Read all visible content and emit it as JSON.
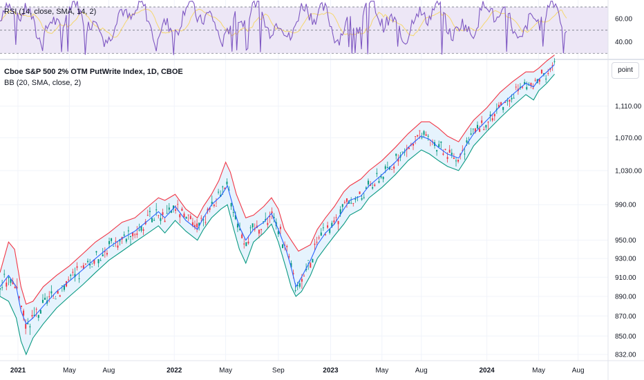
{
  "chart_data": [
    {
      "type": "line",
      "panel": "rsi",
      "legend": "RSI (14, close, SMA, 14, 2)",
      "y_ticks": [
        "60.00",
        "40.00"
      ],
      "y_tick_values": [
        60,
        40
      ],
      "levels": [
        70,
        50,
        30
      ],
      "ylim": [
        26,
        76
      ],
      "colors": {
        "rsi": "#7e57c2",
        "rsi_ma": "#f5d76e",
        "band": "#ede7f6",
        "level": "#787b86"
      }
    },
    {
      "type": "line",
      "panel": "price",
      "title": "Cboe S&P 500 2% OTM PutWrite Index, 1D, CBOE",
      "indicator": "BB (20, SMA, close, 2)",
      "scale_label": "point",
      "x_ticks": [
        "2021",
        "May",
        "Aug",
        "2022",
        "May",
        "Sep",
        "2023",
        "May",
        "Aug",
        "2024",
        "May",
        "Aug"
      ],
      "x_ticks_bold": [
        "2021",
        "2022",
        "2023",
        "2024"
      ],
      "y_ticks": [
        "1,110.00",
        "1,070.00",
        "1,030.00",
        "990.00",
        "950.00",
        "930.00",
        "910.00",
        "890.00",
        "870.00",
        "850.00",
        "832.00"
      ],
      "y_tick_values": [
        1110,
        1070,
        1030,
        990,
        950,
        930,
        910,
        890,
        870,
        850,
        832
      ],
      "series": [
        {
          "x": [
            "2020-11-20",
            "2020-12-10",
            "2020-12-28",
            "2021-01-08",
            "2021-01-20",
            "2021-02-05",
            "2021-03-01",
            "2021-04-01",
            "2021-05-01",
            "2021-06-01",
            "2021-07-01",
            "2021-08-01",
            "2021-09-01",
            "2021-10-01",
            "2021-11-01",
            "2021-11-25",
            "2021-12-10",
            "2022-01-03",
            "2022-01-28",
            "2022-02-24",
            "2022-03-10",
            "2022-03-29",
            "2022-04-20",
            "2022-05-05",
            "2022-05-20",
            "2022-06-02",
            "2022-06-17",
            "2022-07-05",
            "2022-07-29",
            "2022-08-16",
            "2022-09-01",
            "2022-09-20",
            "2022-09-30",
            "2022-10-12",
            "2022-10-25",
            "2022-11-15",
            "2022-12-01",
            "2022-12-20",
            "2023-01-10",
            "2023-02-01",
            "2023-02-15",
            "2023-03-13",
            "2023-04-01",
            "2023-05-01",
            "2023-06-01",
            "2023-07-01",
            "2023-07-31",
            "2023-08-20",
            "2023-09-10",
            "2023-10-01",
            "2023-10-27",
            "2023-11-15",
            "2023-12-01",
            "2024-01-01",
            "2024-02-01",
            "2024-03-01",
            "2024-04-01",
            "2024-04-19",
            "2024-05-01",
            "2024-05-20",
            "2024-06-07"
          ],
          "values": [
            900,
            912,
            900,
            875,
            862,
            868,
            880,
            895,
            906,
            918,
            930,
            942,
            952,
            960,
            972,
            982,
            975,
            988,
            972,
            962,
            975,
            990,
            1000,
            1012,
            985,
            965,
            950,
            962,
            970,
            980,
            962,
            938,
            922,
            900,
            910,
            928,
            945,
            958,
            968,
            985,
            995,
            1000,
            1012,
            1025,
            1040,
            1058,
            1072,
            1068,
            1058,
            1050,
            1045,
            1062,
            1075,
            1092,
            1110,
            1125,
            1140,
            1135,
            1145,
            1155,
            1165
          ],
          "color": "#2962ff"
        },
        {
          "x": [
            "2020-11-20",
            "2020-12-10",
            "2020-12-24",
            "2021-01-08",
            "2021-01-20",
            "2021-02-05",
            "2021-03-01",
            "2021-04-01",
            "2021-05-01",
            "2021-06-01",
            "2021-07-01",
            "2021-08-01",
            "2021-09-01",
            "2021-10-01",
            "2021-11-01",
            "2021-11-25",
            "2021-12-10",
            "2022-01-03",
            "2022-01-28",
            "2022-02-24",
            "2022-03-10",
            "2022-03-29",
            "2022-04-15",
            "2022-05-01",
            "2022-05-12",
            "2022-05-26",
            "2022-06-17",
            "2022-07-05",
            "2022-07-29",
            "2022-08-16",
            "2022-09-01",
            "2022-09-15",
            "2022-10-01",
            "2022-10-18",
            "2022-11-15",
            "2022-12-01",
            "2022-12-20",
            "2023-01-10",
            "2023-02-01",
            "2023-02-15",
            "2023-03-13",
            "2023-04-01",
            "2023-05-01",
            "2023-06-01",
            "2023-07-01",
            "2023-08-01",
            "2023-08-20",
            "2023-09-10",
            "2023-10-01",
            "2023-10-27",
            "2023-11-15",
            "2023-12-01",
            "2024-01-01",
            "2024-02-01",
            "2024-03-01",
            "2024-04-01",
            "2024-04-19",
            "2024-05-01",
            "2024-05-20",
            "2024-06-07"
          ],
          "values": [
            915,
            948,
            940,
            900,
            882,
            885,
            900,
            912,
            922,
            935,
            948,
            958,
            970,
            975,
            988,
            998,
            995,
            1002,
            985,
            975,
            988,
            1002,
            1018,
            1040,
            1028,
            1002,
            975,
            978,
            988,
            998,
            985,
            962,
            950,
            938,
            945,
            962,
            975,
            988,
            1005,
            1012,
            1020,
            1030,
            1042,
            1058,
            1075,
            1090,
            1090,
            1082,
            1072,
            1065,
            1080,
            1092,
            1108,
            1128,
            1142,
            1155,
            1155,
            1160,
            1170,
            1178
          ],
          "color": "#f23645"
        },
        {
          "x": [
            "2020-11-20",
            "2020-12-10",
            "2020-12-28",
            "2021-01-08",
            "2021-01-20",
            "2021-02-05",
            "2021-03-01",
            "2021-04-01",
            "2021-05-01",
            "2021-06-01",
            "2021-07-01",
            "2021-08-01",
            "2021-09-01",
            "2021-10-01",
            "2021-11-01",
            "2021-11-25",
            "2021-12-10",
            "2022-01-03",
            "2022-01-28",
            "2022-02-24",
            "2022-03-10",
            "2022-03-29",
            "2022-04-20",
            "2022-05-05",
            "2022-05-20",
            "2022-06-02",
            "2022-06-17",
            "2022-07-05",
            "2022-07-29",
            "2022-08-16",
            "2022-09-01",
            "2022-09-20",
            "2022-10-01",
            "2022-10-12",
            "2022-10-25",
            "2022-11-15",
            "2022-12-01",
            "2022-12-20",
            "2023-01-10",
            "2023-02-01",
            "2023-02-15",
            "2023-03-13",
            "2023-04-01",
            "2023-05-01",
            "2023-06-01",
            "2023-07-01",
            "2023-08-01",
            "2023-08-20",
            "2023-09-10",
            "2023-10-01",
            "2023-10-27",
            "2023-11-15",
            "2023-12-01",
            "2024-01-01",
            "2024-02-01",
            "2024-03-01",
            "2024-04-01",
            "2024-04-19",
            "2024-05-01",
            "2024-05-20",
            "2024-06-07"
          ],
          "values": [
            890,
            885,
            868,
            845,
            832,
            848,
            862,
            878,
            890,
            902,
            915,
            928,
            938,
            948,
            958,
            966,
            958,
            972,
            960,
            950,
            962,
            975,
            985,
            990,
            962,
            940,
            925,
            948,
            958,
            968,
            948,
            918,
            900,
            890,
            895,
            912,
            930,
            942,
            955,
            968,
            978,
            985,
            998,
            1010,
            1025,
            1042,
            1055,
            1050,
            1042,
            1035,
            1030,
            1045,
            1060,
            1078,
            1095,
            1110,
            1125,
            1118,
            1130,
            1140,
            1152
          ],
          "color": "#089981"
        }
      ],
      "band_fill": "#e3f2fd",
      "xlim": [
        "2020-11-20",
        "2024-10-10"
      ],
      "ylim": [
        826,
        1170
      ]
    }
  ]
}
